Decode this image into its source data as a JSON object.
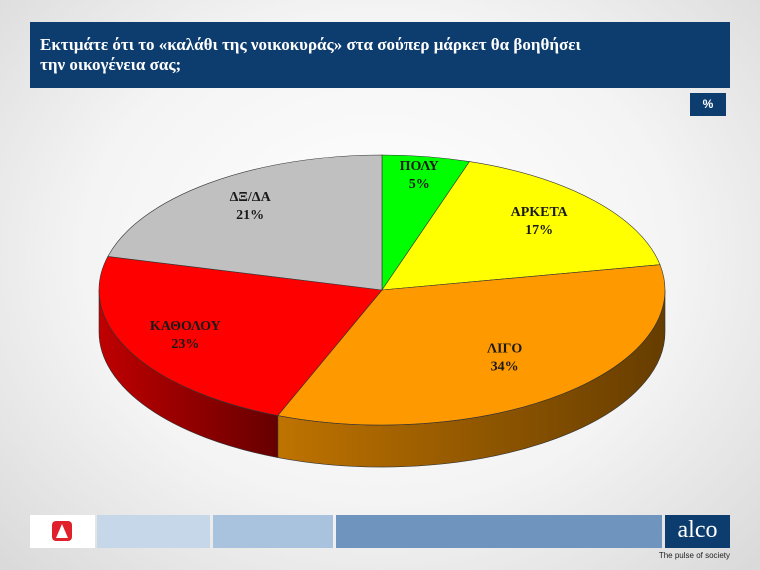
{
  "chart_data": {
    "type": "pie",
    "title": "Εκτιμάτε ότι το «καλάθι της νοικοκυράς» στα σούπερ μάρκετ θα βοηθήσει την οικογένεια σας;",
    "unit": "%",
    "categories": [
      "ΠΟΛΥ",
      "ΑΡΚΕΤΑ",
      "ΛΙΓΟ",
      "ΚΑΘΟΛΟΥ",
      "ΔΞ/ΔΑ"
    ],
    "values": [
      5,
      17,
      34,
      23,
      21
    ],
    "value_labels": [
      "5%",
      "17%",
      "34%",
      "23%",
      "21%"
    ],
    "colors": [
      "#00ff00",
      "#ffff00",
      "#ff9900",
      "#ff0000",
      "#c0c0c0"
    ]
  },
  "footer": {
    "brand": "alco",
    "tagline": "The pulse of society"
  }
}
